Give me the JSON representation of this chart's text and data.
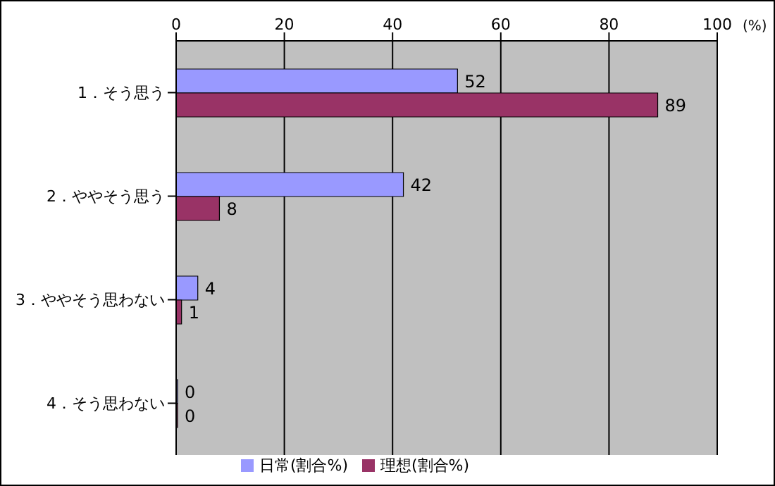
{
  "chart_data": {
    "type": "bar",
    "orientation": "horizontal",
    "categories": [
      "1．そう思う",
      "2．ややそう思う",
      "3．ややそう思わない",
      "4．そう思わない"
    ],
    "series": [
      {
        "name": "日常(割合%)",
        "color": "#9999ff",
        "values": [
          52,
          42,
          4,
          0
        ]
      },
      {
        "name": "理想(割合%)",
        "color": "#993366",
        "values": [
          89,
          8,
          1,
          0
        ]
      }
    ],
    "xlim": [
      0,
      100
    ],
    "xticks": [
      0,
      20,
      40,
      60,
      80,
      100
    ],
    "xlabel": "(%)",
    "grid": "x",
    "legend": "bottom",
    "data_labels": true
  }
}
